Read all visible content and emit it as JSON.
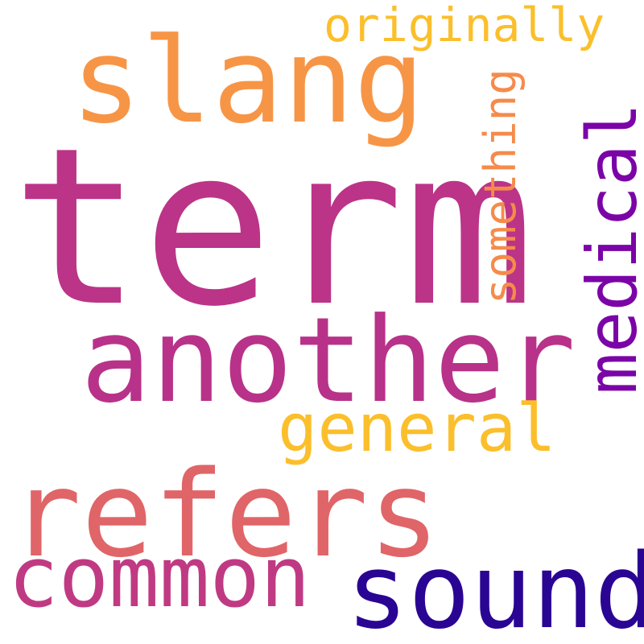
{
  "words": [
    {
      "id": "term",
      "text": "term",
      "color": "#bb3488"
    },
    {
      "id": "slang",
      "text": "slang",
      "color": "#f79546"
    },
    {
      "id": "another",
      "text": "another",
      "color": "#b83289"
    },
    {
      "id": "refers",
      "text": "refers",
      "color": "#e06568"
    },
    {
      "id": "common",
      "text": "common",
      "color": "#c03a83"
    },
    {
      "id": "sound",
      "text": "sound",
      "color": "#2a0593"
    },
    {
      "id": "general",
      "text": "general",
      "color": "#fbbf2c"
    },
    {
      "id": "originally",
      "text": "originally",
      "color": "#fbbf2c"
    },
    {
      "id": "medical",
      "text": "medical",
      "color": "#7b04a7"
    },
    {
      "id": "something",
      "text": "something",
      "color": "#f58b4b"
    }
  ]
}
